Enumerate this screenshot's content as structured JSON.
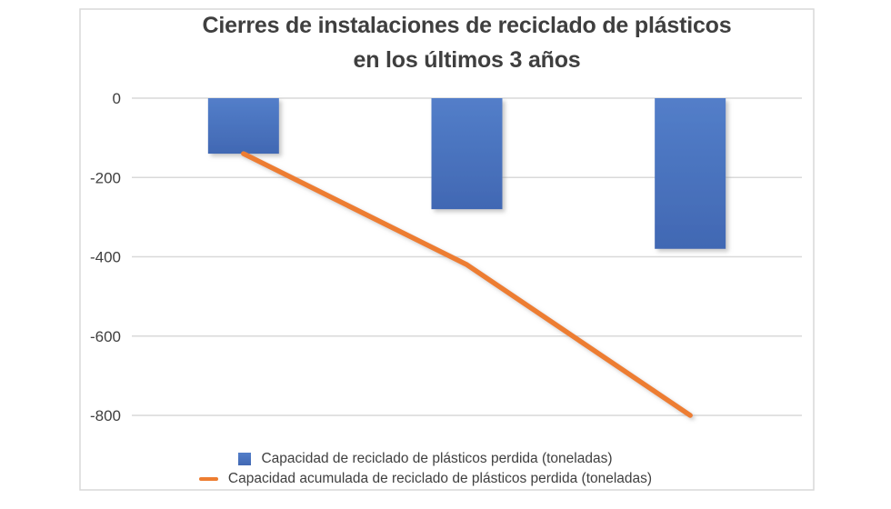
{
  "chart_data": {
    "type": "combo",
    "title": "Cierres de instalaciones de reciclado de plásticos en los últimos 3 años",
    "title_lines": [
      "Cierres de instalaciones de reciclado de plásticos",
      "en los últimos 3 años"
    ],
    "categories": [
      "",
      "",
      ""
    ],
    "x_axis_labels_shown": false,
    "y_ticks": [
      "0",
      "-200",
      "-400",
      "-600",
      "-800"
    ],
    "ylim": [
      -800,
      0
    ],
    "grid": true,
    "legend_position": "bottom",
    "series": [
      {
        "name": "Capacidad de reciclado de plásticos perdida (toneladas)",
        "type": "bar",
        "color": "#4472C4",
        "values": [
          -140,
          -280,
          -380
        ]
      },
      {
        "name": "Capacidad acumulada de reciclado de plásticos perdida (toneladas)",
        "type": "line",
        "color": "#ED7D31",
        "values": [
          -140,
          -420,
          -800
        ]
      }
    ],
    "colors": {
      "title_text": "#3F3F3F",
      "axis_text": "#404040",
      "gridline": "#D9D9D9",
      "frame_border": "#D9D9D9",
      "background": "#FFFFFF",
      "bar_fill": "#4472C4",
      "bar_fill_light": "#537EC9",
      "bar_fill_dark": "#4168B3",
      "line_stroke": "#ED7D31"
    }
  }
}
